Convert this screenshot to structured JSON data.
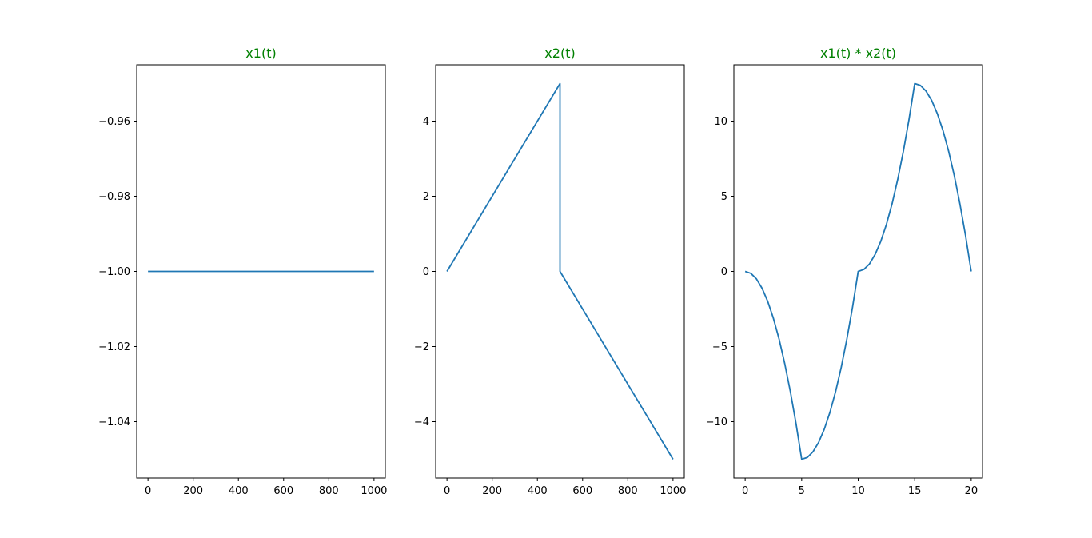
{
  "colors": {
    "line": "#1f77b4",
    "title": "#008000",
    "axes": "#000000",
    "background": "#ffffff"
  },
  "chart_data": [
    {
      "type": "line",
      "title": "x1(t)",
      "xlabel": "",
      "ylabel": "",
      "xlim": [
        -50,
        1050
      ],
      "ylim": [
        -1.055,
        -0.945
      ],
      "xticks": [
        0,
        200,
        400,
        600,
        800,
        1000
      ],
      "xtick_labels": [
        "0",
        "200",
        "400",
        "600",
        "800",
        "1000"
      ],
      "yticks": [
        -0.96,
        -0.98,
        -1.0,
        -1.02,
        -1.04
      ],
      "ytick_labels": [
        "−0.96",
        "−0.98",
        "−1.00",
        "−1.02",
        "−1.04"
      ],
      "grid": false,
      "series": [
        {
          "x": [
            0,
            1000
          ],
          "y": [
            -1.0,
            -1.0
          ]
        }
      ]
    },
    {
      "type": "line",
      "title": "x2(t)",
      "xlabel": "",
      "ylabel": "",
      "xlim": [
        -50,
        1050
      ],
      "ylim": [
        -5.5,
        5.5
      ],
      "xticks": [
        0,
        200,
        400,
        600,
        800,
        1000
      ],
      "xtick_labels": [
        "0",
        "200",
        "400",
        "600",
        "800",
        "1000"
      ],
      "yticks": [
        4,
        2,
        0,
        -2,
        -4
      ],
      "ytick_labels": [
        "4",
        "2",
        "0",
        "−2",
        "−4"
      ],
      "grid": false,
      "series": [
        {
          "x": [
            0,
            500,
            500,
            1000
          ],
          "y": [
            0,
            5,
            0,
            -5
          ]
        }
      ]
    },
    {
      "type": "line",
      "title": "x1(t) * x2(t)",
      "xlabel": "",
      "ylabel": "",
      "xlim": [
        -1,
        21
      ],
      "ylim": [
        -13.75,
        13.75
      ],
      "xticks": [
        0,
        5,
        10,
        15,
        20
      ],
      "xtick_labels": [
        "0",
        "5",
        "10",
        "15",
        "20"
      ],
      "yticks": [
        10,
        5,
        0,
        -5,
        -10
      ],
      "ytick_labels": [
        "10",
        "5",
        "0",
        "−5",
        "−10"
      ],
      "grid": false,
      "series": [
        {
          "x": [
            0,
            0.5,
            1,
            1.5,
            2,
            2.5,
            3,
            3.5,
            4,
            4.5,
            5,
            5.5,
            6,
            6.5,
            7,
            7.5,
            8,
            8.5,
            9,
            9.5,
            10,
            10.5,
            11,
            11.5,
            12,
            12.5,
            13,
            13.5,
            14,
            14.5,
            15,
            15.5,
            16,
            16.5,
            17,
            17.5,
            18,
            18.5,
            19,
            19.5,
            20
          ],
          "y": [
            0,
            -0.13,
            -0.5,
            -1.13,
            -2.0,
            -3.13,
            -4.5,
            -6.13,
            -8.0,
            -10.13,
            -12.5,
            -12.38,
            -12.0,
            -11.38,
            -10.5,
            -9.38,
            -8.0,
            -6.38,
            -4.5,
            -2.38,
            0,
            0.13,
            0.5,
            1.13,
            2.0,
            3.13,
            4.5,
            6.13,
            8.0,
            10.13,
            12.5,
            12.38,
            12.0,
            11.38,
            10.5,
            9.38,
            8.0,
            6.38,
            4.5,
            2.38,
            0
          ]
        }
      ]
    }
  ]
}
